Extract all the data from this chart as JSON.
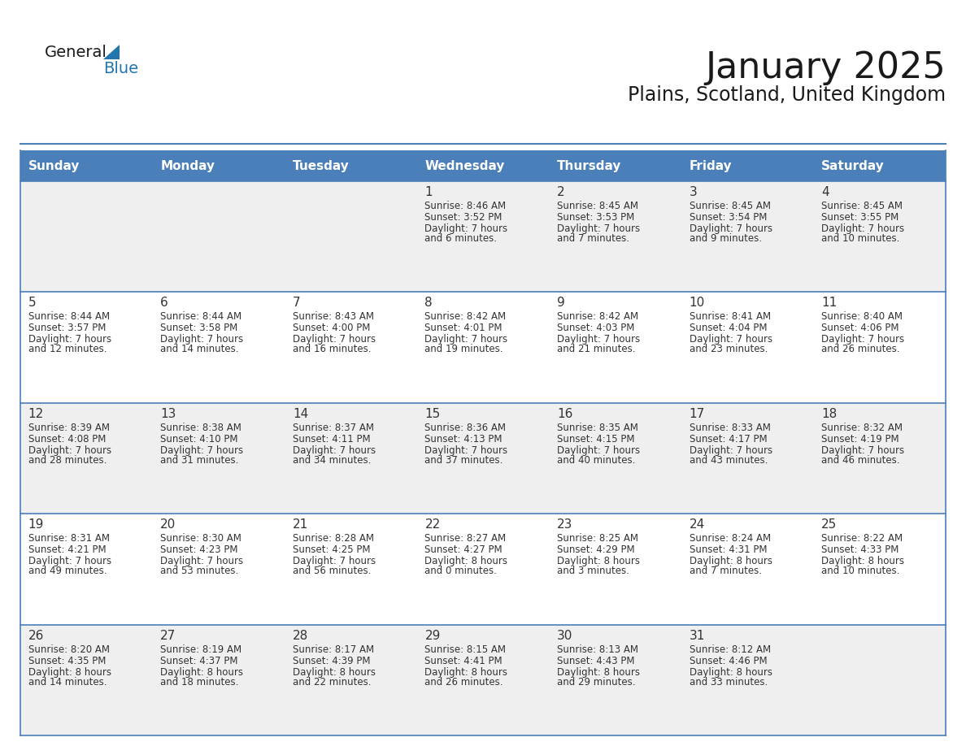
{
  "title": "January 2025",
  "subtitle": "Plains, Scotland, United Kingdom",
  "header_bg": "#4a7fba",
  "header_text_color": "#FFFFFF",
  "days_of_week": [
    "Sunday",
    "Monday",
    "Tuesday",
    "Wednesday",
    "Thursday",
    "Friday",
    "Saturday"
  ],
  "row_bg_light": "#efefef",
  "row_bg_white": "#FFFFFF",
  "cell_text_color": "#333333",
  "border_color": "#4a7fba",
  "day_num_color": "#333333",
  "calendar_data": [
    [
      {
        "day": "",
        "sunrise": "",
        "sunset": "",
        "daylight": ""
      },
      {
        "day": "",
        "sunrise": "",
        "sunset": "",
        "daylight": ""
      },
      {
        "day": "",
        "sunrise": "",
        "sunset": "",
        "daylight": ""
      },
      {
        "day": "1",
        "sunrise": "8:46 AM",
        "sunset": "3:52 PM",
        "daylight": "7 hours and 6 minutes."
      },
      {
        "day": "2",
        "sunrise": "8:45 AM",
        "sunset": "3:53 PM",
        "daylight": "7 hours and 7 minutes."
      },
      {
        "day": "3",
        "sunrise": "8:45 AM",
        "sunset": "3:54 PM",
        "daylight": "7 hours and 9 minutes."
      },
      {
        "day": "4",
        "sunrise": "8:45 AM",
        "sunset": "3:55 PM",
        "daylight": "7 hours and 10 minutes."
      }
    ],
    [
      {
        "day": "5",
        "sunrise": "8:44 AM",
        "sunset": "3:57 PM",
        "daylight": "7 hours and 12 minutes."
      },
      {
        "day": "6",
        "sunrise": "8:44 AM",
        "sunset": "3:58 PM",
        "daylight": "7 hours and 14 minutes."
      },
      {
        "day": "7",
        "sunrise": "8:43 AM",
        "sunset": "4:00 PM",
        "daylight": "7 hours and 16 minutes."
      },
      {
        "day": "8",
        "sunrise": "8:42 AM",
        "sunset": "4:01 PM",
        "daylight": "7 hours and 19 minutes."
      },
      {
        "day": "9",
        "sunrise": "8:42 AM",
        "sunset": "4:03 PM",
        "daylight": "7 hours and 21 minutes."
      },
      {
        "day": "10",
        "sunrise": "8:41 AM",
        "sunset": "4:04 PM",
        "daylight": "7 hours and 23 minutes."
      },
      {
        "day": "11",
        "sunrise": "8:40 AM",
        "sunset": "4:06 PM",
        "daylight": "7 hours and 26 minutes."
      }
    ],
    [
      {
        "day": "12",
        "sunrise": "8:39 AM",
        "sunset": "4:08 PM",
        "daylight": "7 hours and 28 minutes."
      },
      {
        "day": "13",
        "sunrise": "8:38 AM",
        "sunset": "4:10 PM",
        "daylight": "7 hours and 31 minutes."
      },
      {
        "day": "14",
        "sunrise": "8:37 AM",
        "sunset": "4:11 PM",
        "daylight": "7 hours and 34 minutes."
      },
      {
        "day": "15",
        "sunrise": "8:36 AM",
        "sunset": "4:13 PM",
        "daylight": "7 hours and 37 minutes."
      },
      {
        "day": "16",
        "sunrise": "8:35 AM",
        "sunset": "4:15 PM",
        "daylight": "7 hours and 40 minutes."
      },
      {
        "day": "17",
        "sunrise": "8:33 AM",
        "sunset": "4:17 PM",
        "daylight": "7 hours and 43 minutes."
      },
      {
        "day": "18",
        "sunrise": "8:32 AM",
        "sunset": "4:19 PM",
        "daylight": "7 hours and 46 minutes."
      }
    ],
    [
      {
        "day": "19",
        "sunrise": "8:31 AM",
        "sunset": "4:21 PM",
        "daylight": "7 hours and 49 minutes."
      },
      {
        "day": "20",
        "sunrise": "8:30 AM",
        "sunset": "4:23 PM",
        "daylight": "7 hours and 53 minutes."
      },
      {
        "day": "21",
        "sunrise": "8:28 AM",
        "sunset": "4:25 PM",
        "daylight": "7 hours and 56 minutes."
      },
      {
        "day": "22",
        "sunrise": "8:27 AM",
        "sunset": "4:27 PM",
        "daylight": "8 hours and 0 minutes."
      },
      {
        "day": "23",
        "sunrise": "8:25 AM",
        "sunset": "4:29 PM",
        "daylight": "8 hours and 3 minutes."
      },
      {
        "day": "24",
        "sunrise": "8:24 AM",
        "sunset": "4:31 PM",
        "daylight": "8 hours and 7 minutes."
      },
      {
        "day": "25",
        "sunrise": "8:22 AM",
        "sunset": "4:33 PM",
        "daylight": "8 hours and 10 minutes."
      }
    ],
    [
      {
        "day": "26",
        "sunrise": "8:20 AM",
        "sunset": "4:35 PM",
        "daylight": "8 hours and 14 minutes."
      },
      {
        "day": "27",
        "sunrise": "8:19 AM",
        "sunset": "4:37 PM",
        "daylight": "8 hours and 18 minutes."
      },
      {
        "day": "28",
        "sunrise": "8:17 AM",
        "sunset": "4:39 PM",
        "daylight": "8 hours and 22 minutes."
      },
      {
        "day": "29",
        "sunrise": "8:15 AM",
        "sunset": "4:41 PM",
        "daylight": "8 hours and 26 minutes."
      },
      {
        "day": "30",
        "sunrise": "8:13 AM",
        "sunset": "4:43 PM",
        "daylight": "8 hours and 29 minutes."
      },
      {
        "day": "31",
        "sunrise": "8:12 AM",
        "sunset": "4:46 PM",
        "daylight": "8 hours and 33 minutes."
      },
      {
        "day": "",
        "sunrise": "",
        "sunset": "",
        "daylight": ""
      }
    ]
  ],
  "logo_general_color": "#1a1a1a",
  "logo_blue_color": "#2176AE",
  "logo_triangle_color": "#2176AE",
  "title_fontsize": 32,
  "subtitle_fontsize": 17,
  "header_fontsize": 11,
  "day_num_fontsize": 11,
  "cell_fontsize": 8.5
}
